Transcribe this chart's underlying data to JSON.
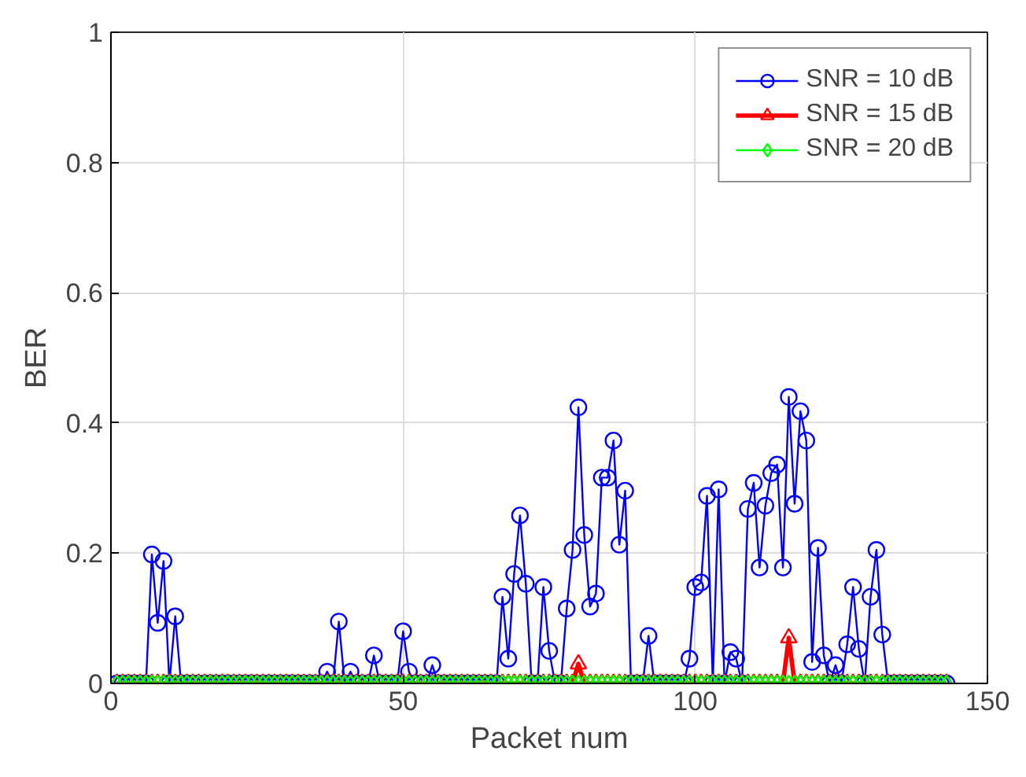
{
  "chart_data": {
    "type": "line",
    "xlabel": "Packet num",
    "ylabel": "BER",
    "xlim": [
      0,
      150
    ],
    "xticks": [
      0,
      50,
      100,
      150
    ],
    "ylim": [
      0,
      1
    ],
    "yticks": [
      0,
      0.2,
      0.4,
      0.6,
      0.8,
      1
    ],
    "grid": true,
    "legend": "top right",
    "x": [
      1,
      2,
      3,
      4,
      5,
      6,
      7,
      8,
      9,
      10,
      11,
      12,
      13,
      14,
      15,
      16,
      17,
      18,
      19,
      20,
      21,
      22,
      23,
      24,
      25,
      26,
      27,
      28,
      29,
      30,
      31,
      32,
      33,
      34,
      35,
      36,
      37,
      38,
      39,
      40,
      41,
      42,
      43,
      44,
      45,
      46,
      47,
      48,
      49,
      50,
      51,
      52,
      53,
      54,
      55,
      56,
      57,
      58,
      59,
      60,
      61,
      62,
      63,
      64,
      65,
      66,
      67,
      68,
      69,
      70,
      71,
      72,
      73,
      74,
      75,
      76,
      77,
      78,
      79,
      80,
      81,
      82,
      83,
      84,
      85,
      86,
      87,
      88,
      89,
      90,
      91,
      92,
      93,
      94,
      95,
      96,
      97,
      98,
      99,
      100,
      101,
      102,
      103,
      104,
      105,
      106,
      107,
      108,
      109,
      110,
      111,
      112,
      113,
      114,
      115,
      116,
      117,
      118,
      119,
      120,
      121,
      122,
      123,
      124,
      125,
      126,
      127,
      128,
      129,
      130,
      131,
      132,
      133,
      134,
      135,
      136,
      137,
      138,
      139,
      140,
      141,
      142,
      143
    ],
    "series": [
      {
        "name": "SNR = 10 dB",
        "color": "#0000ff",
        "marker": "circle",
        "values": [
          0,
          0,
          0,
          0,
          0,
          0,
          0.198,
          0.093,
          0.188,
          0,
          0.103,
          0,
          0,
          0,
          0,
          0,
          0,
          0,
          0,
          0,
          0,
          0,
          0,
          0,
          0,
          0,
          0,
          0,
          0,
          0,
          0,
          0,
          0,
          0,
          0,
          0,
          0.018,
          0,
          0.095,
          0,
          0.018,
          0,
          0,
          0,
          0.043,
          0,
          0,
          0,
          0,
          0.08,
          0.018,
          0,
          0,
          0,
          0.028,
          0,
          0,
          0,
          0,
          0,
          0,
          0,
          0,
          0,
          0,
          0,
          0.133,
          0.038,
          0.168,
          0.258,
          0.153,
          0,
          0,
          0.148,
          0.05,
          0,
          0,
          0.115,
          0.205,
          0.424,
          0.228,
          0.118,
          0.138,
          0.316,
          0.316,
          0.373,
          0.213,
          0.296,
          0,
          0,
          0,
          0.073,
          0,
          0,
          0,
          0,
          0,
          0,
          0.038,
          0.148,
          0.155,
          0.288,
          0,
          0.298,
          0,
          0.048,
          0.038,
          0,
          0.268,
          0.308,
          0.178,
          0.273,
          0.323,
          0.336,
          0.178,
          0.44,
          0.276,
          0.418,
          0.373,
          0.033,
          0.208,
          0.043,
          0,
          0.028,
          0,
          0.06,
          0.148,
          0.053,
          0,
          0.133,
          0.205,
          0.075,
          0,
          0,
          0,
          0,
          0,
          0,
          0,
          0,
          0,
          0,
          0
        ]
      },
      {
        "name": "SNR = 15 dB",
        "color": "#ff0000",
        "marker": "triangle",
        "values": [
          0,
          0,
          0,
          0,
          0,
          0,
          0,
          0,
          0,
          0,
          0,
          0,
          0,
          0,
          0,
          0,
          0,
          0,
          0,
          0,
          0,
          0,
          0,
          0,
          0,
          0,
          0,
          0,
          0,
          0,
          0,
          0,
          0,
          0,
          0,
          0,
          0,
          0,
          0,
          0,
          0,
          0,
          0,
          0,
          0,
          0,
          0,
          0,
          0,
          0,
          0,
          0,
          0,
          0,
          0,
          0,
          0,
          0,
          0,
          0,
          0,
          0,
          0,
          0,
          0,
          0,
          0,
          0,
          0,
          0,
          0,
          0,
          0,
          0,
          0,
          0,
          0,
          0,
          0,
          0.03,
          0,
          0,
          0,
          0,
          0,
          0,
          0,
          0,
          0,
          0,
          0,
          0,
          0,
          0,
          0,
          0,
          0,
          0,
          0,
          0,
          0,
          0,
          0,
          0,
          0,
          0,
          0,
          0,
          0,
          0,
          0,
          0,
          0,
          0,
          0,
          0.07,
          0,
          0,
          0,
          0,
          0,
          0,
          0,
          0,
          0,
          0,
          0,
          0,
          0,
          0,
          0,
          0,
          0,
          0,
          0,
          0,
          0,
          0,
          0,
          0,
          0,
          0,
          0
        ]
      },
      {
        "name": "SNR = 20 dB",
        "color": "#00ff00",
        "marker": "diamond",
        "values": [
          0,
          0,
          0,
          0,
          0,
          0,
          0,
          0,
          0,
          0,
          0,
          0,
          0,
          0,
          0,
          0,
          0,
          0,
          0,
          0,
          0,
          0,
          0,
          0,
          0,
          0,
          0,
          0,
          0,
          0,
          0,
          0,
          0,
          0,
          0,
          0,
          0,
          0,
          0,
          0,
          0,
          0,
          0,
          0,
          0,
          0,
          0,
          0,
          0,
          0,
          0,
          0,
          0,
          0,
          0,
          0,
          0,
          0,
          0,
          0,
          0,
          0,
          0,
          0,
          0,
          0,
          0,
          0,
          0,
          0,
          0,
          0,
          0,
          0,
          0,
          0,
          0,
          0,
          0,
          0,
          0,
          0,
          0,
          0,
          0,
          0,
          0,
          0,
          0,
          0,
          0,
          0,
          0,
          0,
          0,
          0,
          0,
          0,
          0,
          0,
          0,
          0,
          0,
          0,
          0,
          0,
          0,
          0,
          0,
          0,
          0,
          0,
          0,
          0,
          0,
          0,
          0,
          0,
          0,
          0,
          0,
          0,
          0,
          0,
          0,
          0,
          0,
          0,
          0,
          0,
          0,
          0,
          0,
          0,
          0,
          0,
          0,
          0,
          0,
          0,
          0,
          0,
          0
        ]
      }
    ]
  }
}
